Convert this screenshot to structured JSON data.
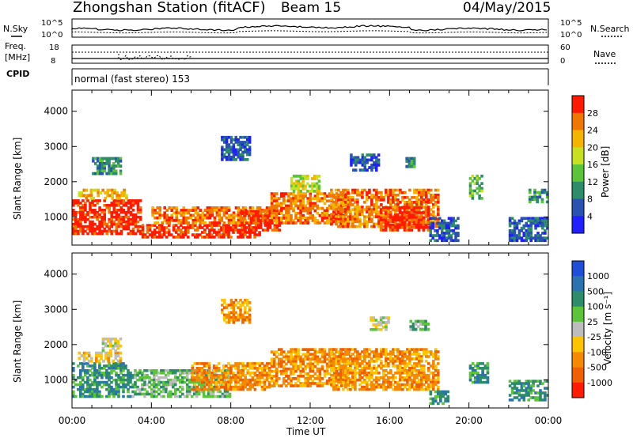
{
  "header": {
    "station": "Zhongshan Station (fitACF)",
    "beam": "Beam 15",
    "date": "04/May/2015"
  },
  "strips": {
    "nsky_label": "N.Sky",
    "nsky_ticks": [
      "10^5",
      "10^0"
    ],
    "nsearch_label": "N.Search",
    "nsearch_ticks": [
      "10^5",
      "10^0"
    ],
    "freq_label_1": "Freq.",
    "freq_label_2": "[MHz]",
    "freq_ticks": [
      "18",
      "8"
    ],
    "nave_label": "Nave",
    "nave_ticks": [
      "60",
      "0"
    ],
    "cpid_label": "CPID",
    "cpid_text": "normal (fast stereo) 153"
  },
  "chart_data": [
    {
      "type": "heatmap",
      "panel": "power",
      "ylabel": "Slant Range [km]",
      "xlabel": "Time UT",
      "x_ticks": [
        "00:00",
        "04:00",
        "08:00",
        "12:00",
        "16:00",
        "20:00",
        "00:00"
      ],
      "xlim": [
        0,
        24
      ],
      "ylim": [
        200,
        4600
      ],
      "y_ticks": [
        1000,
        2000,
        3000,
        4000
      ],
      "colorbar": {
        "label": "Power [dB]",
        "ticks": [
          "4",
          "8",
          "12",
          "16",
          "20",
          "24",
          "28"
        ],
        "colors": [
          "#1f1fff",
          "#2a52b0",
          "#2d8c6a",
          "#5cc43b",
          "#c8e020",
          "#f5b400",
          "#f07800",
          "#ff1a00"
        ]
      },
      "regions": [
        {
          "t0": 0.0,
          "t1": 3.5,
          "r0": 500,
          "r1": 1500,
          "c": 7
        },
        {
          "t0": 0.3,
          "t1": 2.8,
          "r0": 1500,
          "r1": 1800,
          "c": 5
        },
        {
          "t0": 1.0,
          "t1": 2.5,
          "r0": 2200,
          "r1": 2700,
          "c": 2
        },
        {
          "t0": 3.5,
          "t1": 9.5,
          "r0": 400,
          "r1": 800,
          "c": 7
        },
        {
          "t0": 4.0,
          "t1": 10.0,
          "r0": 800,
          "r1": 1300,
          "c": 6
        },
        {
          "t0": 8.5,
          "t1": 10.5,
          "r0": 600,
          "r1": 1200,
          "c": 7
        },
        {
          "t0": 7.5,
          "t1": 9.0,
          "r0": 2600,
          "r1": 3300,
          "c": 1
        },
        {
          "t0": 10.0,
          "t1": 14.0,
          "r0": 800,
          "r1": 1700,
          "c": 6
        },
        {
          "t0": 11.0,
          "t1": 12.5,
          "r0": 1700,
          "r1": 2200,
          "c": 4
        },
        {
          "t0": 13.0,
          "t1": 18.5,
          "r0": 700,
          "r1": 1800,
          "c": 6
        },
        {
          "t0": 15.5,
          "t1": 18.0,
          "r0": 600,
          "r1": 1300,
          "c": 7
        },
        {
          "t0": 14.0,
          "t1": 15.5,
          "r0": 2300,
          "r1": 2800,
          "c": 1
        },
        {
          "t0": 16.8,
          "t1": 17.3,
          "r0": 2400,
          "r1": 2700,
          "c": 2
        },
        {
          "t0": 18.0,
          "t1": 19.5,
          "r0": 300,
          "r1": 1000,
          "c": 1
        },
        {
          "t0": 20.0,
          "t1": 20.7,
          "r0": 1500,
          "r1": 2200,
          "c": 3
        },
        {
          "t0": 22.0,
          "t1": 24.0,
          "r0": 300,
          "r1": 1000,
          "c": 1
        },
        {
          "t0": 23.0,
          "t1": 24.0,
          "r0": 1400,
          "r1": 1800,
          "c": 2
        }
      ]
    },
    {
      "type": "heatmap",
      "panel": "velocity",
      "ylabel": "Slant Range [km]",
      "xlabel": "Time UT",
      "x_ticks": [
        "00:00",
        "04:00",
        "08:00",
        "12:00",
        "16:00",
        "20:00",
        "00:00"
      ],
      "xlim": [
        0,
        24
      ],
      "ylim": [
        200,
        4600
      ],
      "y_ticks": [
        1000,
        2000,
        3000,
        4000
      ],
      "colorbar": {
        "label": "Velocity [m s⁻¹]",
        "ticks": [
          "1000",
          "500",
          "100",
          "25",
          "-25",
          "-100",
          "-500",
          "-1000"
        ],
        "colors": [
          "#1f4fd8",
          "#2a73b0",
          "#2d8c6a",
          "#5cc43b",
          "#bdbdbd",
          "#ffc400",
          "#f58a00",
          "#f06000",
          "#ff1a00"
        ]
      },
      "regions": [
        {
          "t0": 0.0,
          "t1": 3.0,
          "r0": 500,
          "r1": 1500,
          "c": 2
        },
        {
          "t0": 0.3,
          "t1": 2.5,
          "r0": 1500,
          "r1": 1800,
          "c": 5
        },
        {
          "t0": 1.5,
          "t1": 2.5,
          "r0": 1800,
          "r1": 2200,
          "c": 4
        },
        {
          "t0": 3.0,
          "t1": 8.0,
          "r0": 500,
          "r1": 1300,
          "c": 3
        },
        {
          "t0": 6.0,
          "t1": 10.0,
          "r0": 700,
          "r1": 1500,
          "c": 6
        },
        {
          "t0": 7.5,
          "t1": 9.0,
          "r0": 2600,
          "r1": 3300,
          "c": 6
        },
        {
          "t0": 10.0,
          "t1": 14.0,
          "r0": 800,
          "r1": 1900,
          "c": 6
        },
        {
          "t0": 13.0,
          "t1": 18.5,
          "r0": 700,
          "r1": 1900,
          "c": 6
        },
        {
          "t0": 15.0,
          "t1": 16.0,
          "r0": 2400,
          "r1": 2800,
          "c": 4
        },
        {
          "t0": 17.0,
          "t1": 18.0,
          "r0": 2400,
          "r1": 2700,
          "c": 3
        },
        {
          "t0": 18.0,
          "t1": 19.0,
          "r0": 300,
          "r1": 700,
          "c": 2
        },
        {
          "t0": 20.0,
          "t1": 21.0,
          "r0": 900,
          "r1": 1500,
          "c": 2
        },
        {
          "t0": 22.0,
          "t1": 24.0,
          "r0": 400,
          "r1": 1000,
          "c": 2
        }
      ]
    }
  ]
}
